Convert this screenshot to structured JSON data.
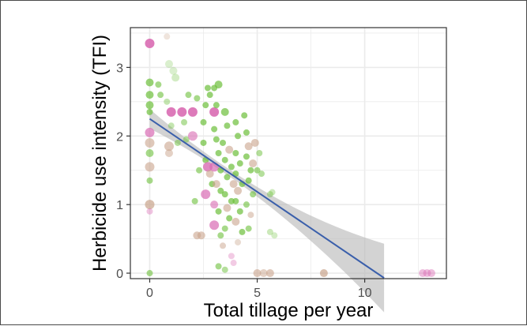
{
  "chart_data": {
    "type": "scatter",
    "title": "",
    "xlabel": "Total tillage per year",
    "ylabel": "Herbicide use intensity (TFI)",
    "xlim": [
      -0.9,
      13.8
    ],
    "ylim": [
      -0.08,
      3.58
    ],
    "x_ticks": [
      0,
      5,
      10
    ],
    "y_ticks": [
      0,
      1,
      2,
      3
    ],
    "grid": true,
    "legend": "none",
    "colors": {
      "panel_border": "#333333",
      "grid": "#ebebeb",
      "fit_line": "#3a5fab",
      "confidence_band": "#b5b5b5",
      "green": "#6cbf3a",
      "pink": "#d96bb3",
      "tan": "#c9a48c"
    },
    "trend": {
      "x": [
        0,
        10.9
      ],
      "y": [
        2.25,
        -0.07
      ]
    },
    "points": [
      {
        "x": 0,
        "y": 3.35,
        "c": "pink",
        "s": 6,
        "o": 0.9
      },
      {
        "x": 0,
        "y": 2.78,
        "c": "green",
        "s": 5,
        "o": 0.7
      },
      {
        "x": 0,
        "y": 2.6,
        "c": "green",
        "s": 5,
        "o": 0.7
      },
      {
        "x": 0,
        "y": 2.45,
        "c": "green",
        "s": 5,
        "o": 0.7
      },
      {
        "x": 0,
        "y": 2.35,
        "c": "green",
        "s": 4,
        "o": 0.7
      },
      {
        "x": 0,
        "y": 2.05,
        "c": "pink",
        "s": 6,
        "o": 0.7
      },
      {
        "x": 0,
        "y": 1.9,
        "c": "tan",
        "s": 6,
        "o": 0.6
      },
      {
        "x": 0,
        "y": 1.75,
        "c": "green",
        "s": 5,
        "o": 0.6
      },
      {
        "x": 0,
        "y": 1.55,
        "c": "tan",
        "s": 6,
        "o": 0.6
      },
      {
        "x": 0,
        "y": 1.35,
        "c": "green",
        "s": 4,
        "o": 0.6
      },
      {
        "x": 0,
        "y": 1.0,
        "c": "tan",
        "s": 6,
        "o": 0.7
      },
      {
        "x": 0,
        "y": 0.9,
        "c": "pink",
        "s": 4,
        "o": 0.4
      },
      {
        "x": 0,
        "y": 0,
        "c": "green",
        "s": 4,
        "o": 0.6
      },
      {
        "x": 0.4,
        "y": 2.75,
        "c": "green",
        "s": 4,
        "o": 0.6
      },
      {
        "x": 0.5,
        "y": 2.6,
        "c": "green",
        "s": 4,
        "o": 0.6
      },
      {
        "x": 0.8,
        "y": 3.45,
        "c": "tan",
        "s": 4,
        "o": 0.3
      },
      {
        "x": 0.9,
        "y": 3.05,
        "c": "green",
        "s": 5,
        "o": 0.25
      },
      {
        "x": 1.0,
        "y": 2.35,
        "c": "pink",
        "s": 6,
        "o": 0.9
      },
      {
        "x": 1.1,
        "y": 2.95,
        "c": "green",
        "s": 5,
        "o": 0.25
      },
      {
        "x": 1.2,
        "y": 2.85,
        "c": "green",
        "s": 5,
        "o": 0.3
      },
      {
        "x": 0.8,
        "y": 2.5,
        "c": "green",
        "s": 4,
        "o": 0.4
      },
      {
        "x": 0.9,
        "y": 1.85,
        "c": "tan",
        "s": 6,
        "o": 0.6
      },
      {
        "x": 0.9,
        "y": 1.75,
        "c": "tan",
        "s": 5,
        "o": 0.5
      },
      {
        "x": 1.0,
        "y": 2.15,
        "c": "green",
        "s": 4,
        "o": 0.4
      },
      {
        "x": 1.5,
        "y": 2.35,
        "c": "pink",
        "s": 6,
        "o": 0.9
      },
      {
        "x": 1.6,
        "y": 2.2,
        "c": "green",
        "s": 4,
        "o": 0.5
      },
      {
        "x": 1.7,
        "y": 1.95,
        "c": "green",
        "s": 4,
        "o": 0.5
      },
      {
        "x": 1.3,
        "y": 1.9,
        "c": "green",
        "s": 4,
        "o": 0.5
      },
      {
        "x": 2.0,
        "y": 2.35,
        "c": "pink",
        "s": 6,
        "o": 0.9
      },
      {
        "x": 2.0,
        "y": 2.0,
        "c": "pink",
        "s": 6,
        "o": 0.6
      },
      {
        "x": 1.8,
        "y": 2.6,
        "c": "green",
        "s": 4,
        "o": 0.6
      },
      {
        "x": 2.2,
        "y": 2.55,
        "c": "green",
        "s": 4,
        "o": 0.6
      },
      {
        "x": 2.3,
        "y": 1.5,
        "c": "green",
        "s": 4,
        "o": 0.6
      },
      {
        "x": 2.1,
        "y": 1.05,
        "c": "green",
        "s": 4,
        "o": 0.6
      },
      {
        "x": 2.2,
        "y": 0.55,
        "c": "tan",
        "s": 5,
        "o": 0.6
      },
      {
        "x": 2.4,
        "y": 0.55,
        "c": "tan",
        "s": 5,
        "o": 0.6
      },
      {
        "x": 2.7,
        "y": 2.7,
        "c": "green",
        "s": 4,
        "o": 0.7
      },
      {
        "x": 2.8,
        "y": 2.6,
        "c": "green",
        "s": 4,
        "o": 0.7
      },
      {
        "x": 2.6,
        "y": 2.45,
        "c": "green",
        "s": 4,
        "o": 0.7
      },
      {
        "x": 2.5,
        "y": 2.2,
        "c": "green",
        "s": 4,
        "o": 0.7
      },
      {
        "x": 2.5,
        "y": 1.9,
        "c": "green",
        "s": 4,
        "o": 0.7
      },
      {
        "x": 2.6,
        "y": 1.65,
        "c": "green",
        "s": 4,
        "o": 0.7
      },
      {
        "x": 2.7,
        "y": 1.55,
        "c": "pink",
        "s": 6,
        "o": 0.8
      },
      {
        "x": 2.8,
        "y": 1.45,
        "c": "tan",
        "s": 5,
        "o": 0.6
      },
      {
        "x": 2.6,
        "y": 1.15,
        "c": "pink",
        "s": 6,
        "o": 0.7
      },
      {
        "x": 2.9,
        "y": 1.3,
        "c": "green",
        "s": 4,
        "o": 0.7
      },
      {
        "x": 3.0,
        "y": 2.35,
        "c": "pink",
        "s": 6,
        "o": 0.9
      },
      {
        "x": 3.0,
        "y": 2.7,
        "c": "green",
        "s": 4,
        "o": 0.7
      },
      {
        "x": 3.2,
        "y": 2.75,
        "c": "green",
        "s": 5,
        "o": 0.7
      },
      {
        "x": 3.1,
        "y": 2.45,
        "c": "green",
        "s": 4,
        "o": 0.7
      },
      {
        "x": 3.0,
        "y": 2.1,
        "c": "green",
        "s": 4,
        "o": 0.7
      },
      {
        "x": 3.1,
        "y": 1.95,
        "c": "green",
        "s": 4,
        "o": 0.7
      },
      {
        "x": 3.2,
        "y": 1.75,
        "c": "green",
        "s": 4,
        "o": 0.7
      },
      {
        "x": 3.0,
        "y": 1.55,
        "c": "pink",
        "s": 6,
        "o": 0.7
      },
      {
        "x": 3.3,
        "y": 1.5,
        "c": "green",
        "s": 4,
        "o": 0.7
      },
      {
        "x": 3.1,
        "y": 1.3,
        "c": "tan",
        "s": 5,
        "o": 0.6
      },
      {
        "x": 3.3,
        "y": 1.2,
        "c": "green",
        "s": 4,
        "o": 0.7
      },
      {
        "x": 3.0,
        "y": 1.0,
        "c": "pink",
        "s": 5,
        "o": 0.6
      },
      {
        "x": 3.2,
        "y": 0.9,
        "c": "green",
        "s": 4,
        "o": 0.7
      },
      {
        "x": 3.0,
        "y": 0.7,
        "c": "pink",
        "s": 6,
        "o": 0.7
      },
      {
        "x": 3.3,
        "y": 0.55,
        "c": "green",
        "s": 4,
        "o": 0.6
      },
      {
        "x": 3.5,
        "y": 2.35,
        "c": "green",
        "s": 5,
        "o": 0.7
      },
      {
        "x": 3.6,
        "y": 2.15,
        "c": "green",
        "s": 4,
        "o": 0.7
      },
      {
        "x": 3.4,
        "y": 1.9,
        "c": "green",
        "s": 4,
        "o": 0.7
      },
      {
        "x": 3.7,
        "y": 1.8,
        "c": "tan",
        "s": 5,
        "o": 0.6
      },
      {
        "x": 3.5,
        "y": 1.65,
        "c": "green",
        "s": 4,
        "o": 0.7
      },
      {
        "x": 3.8,
        "y": 1.55,
        "c": "green",
        "s": 4,
        "o": 0.7
      },
      {
        "x": 3.6,
        "y": 1.4,
        "c": "green",
        "s": 4,
        "o": 0.7
      },
      {
        "x": 3.9,
        "y": 1.3,
        "c": "tan",
        "s": 5,
        "o": 0.6
      },
      {
        "x": 3.5,
        "y": 1.15,
        "c": "green",
        "s": 4,
        "o": 0.7
      },
      {
        "x": 3.8,
        "y": 1.05,
        "c": "green",
        "s": 4,
        "o": 0.7
      },
      {
        "x": 3.6,
        "y": 0.95,
        "c": "tan",
        "s": 5,
        "o": 0.6
      },
      {
        "x": 3.7,
        "y": 0.8,
        "c": "green",
        "s": 4,
        "o": 0.7
      },
      {
        "x": 3.5,
        "y": 0.65,
        "c": "green",
        "s": 4,
        "o": 0.6
      },
      {
        "x": 3.4,
        "y": 0.4,
        "c": "tan",
        "s": 4,
        "o": 0.5
      },
      {
        "x": 3.2,
        "y": 0.1,
        "c": "green",
        "s": 4,
        "o": 0.6
      },
      {
        "x": 3.5,
        "y": 0.05,
        "c": "green",
        "s": 4,
        "o": 0.5
      },
      {
        "x": 3.8,
        "y": 0.25,
        "c": "pink",
        "s": 4,
        "o": 0.35
      },
      {
        "x": 3.9,
        "y": 0.15,
        "c": "pink",
        "s": 4,
        "o": 0.35
      },
      {
        "x": 4.0,
        "y": 2.2,
        "c": "green",
        "s": 4,
        "o": 0.7
      },
      {
        "x": 4.1,
        "y": 2.0,
        "c": "green",
        "s": 4,
        "o": 0.7
      },
      {
        "x": 4.0,
        "y": 1.75,
        "c": "green",
        "s": 4,
        "o": 0.7
      },
      {
        "x": 4.2,
        "y": 1.6,
        "c": "green",
        "s": 4,
        "o": 0.7
      },
      {
        "x": 4.0,
        "y": 1.45,
        "c": "green",
        "s": 4,
        "o": 0.7
      },
      {
        "x": 4.3,
        "y": 1.3,
        "c": "green",
        "s": 4,
        "o": 0.7
      },
      {
        "x": 4.1,
        "y": 1.2,
        "c": "tan",
        "s": 5,
        "o": 0.6
      },
      {
        "x": 4.0,
        "y": 1.05,
        "c": "green",
        "s": 4,
        "o": 0.7
      },
      {
        "x": 4.2,
        "y": 0.9,
        "c": "green",
        "s": 4,
        "o": 0.7
      },
      {
        "x": 4.0,
        "y": 0.75,
        "c": "tan",
        "s": 5,
        "o": 0.6
      },
      {
        "x": 4.3,
        "y": 0.6,
        "c": "green",
        "s": 4,
        "o": 0.7
      },
      {
        "x": 4.1,
        "y": 0.45,
        "c": "tan",
        "s": 4,
        "o": 0.4
      },
      {
        "x": 4.4,
        "y": 2.3,
        "c": "green",
        "s": 4,
        "o": 0.7
      },
      {
        "x": 4.5,
        "y": 2.05,
        "c": "green",
        "s": 4,
        "o": 0.7
      },
      {
        "x": 4.6,
        "y": 1.85,
        "c": "tan",
        "s": 5,
        "o": 0.6
      },
      {
        "x": 4.5,
        "y": 1.7,
        "c": "green",
        "s": 4,
        "o": 0.7
      },
      {
        "x": 4.7,
        "y": 1.5,
        "c": "green",
        "s": 4,
        "o": 0.7
      },
      {
        "x": 4.6,
        "y": 1.35,
        "c": "green",
        "s": 4,
        "o": 0.7
      },
      {
        "x": 4.8,
        "y": 1.15,
        "c": "green",
        "s": 4,
        "o": 0.6
      },
      {
        "x": 4.5,
        "y": 1.0,
        "c": "green",
        "s": 4,
        "o": 0.6
      },
      {
        "x": 4.7,
        "y": 0.85,
        "c": "tan",
        "s": 4,
        "o": 0.5
      },
      {
        "x": 4.6,
        "y": 0.65,
        "c": "green",
        "s": 4,
        "o": 0.6
      },
      {
        "x": 4.8,
        "y": 1.6,
        "c": "tan",
        "s": 5,
        "o": 0.6
      },
      {
        "x": 4.9,
        "y": 1.9,
        "c": "tan",
        "s": 5,
        "o": 0.6
      },
      {
        "x": 5.0,
        "y": 1.5,
        "c": "green",
        "s": 4,
        "o": 0.6
      },
      {
        "x": 5.1,
        "y": 1.75,
        "c": "green",
        "s": 4,
        "o": 0.5
      },
      {
        "x": 5.2,
        "y": 1.45,
        "c": "green",
        "s": 4,
        "o": 0.5
      },
      {
        "x": 5.0,
        "y": 0,
        "c": "tan",
        "s": 5,
        "o": 0.6
      },
      {
        "x": 5.3,
        "y": 0,
        "c": "tan",
        "s": 5,
        "o": 0.5
      },
      {
        "x": 5.6,
        "y": 1.15,
        "c": "green",
        "s": 4,
        "o": 0.4
      },
      {
        "x": 5.7,
        "y": 1.18,
        "c": "green",
        "s": 4,
        "o": 0.35
      },
      {
        "x": 5.6,
        "y": 0.6,
        "c": "green",
        "s": 4,
        "o": 0.35
      },
      {
        "x": 5.8,
        "y": 0.55,
        "c": "green",
        "s": 4,
        "o": 0.3
      },
      {
        "x": 5.6,
        "y": 0,
        "c": "tan",
        "s": 5,
        "o": 0.6
      },
      {
        "x": 8.1,
        "y": 0,
        "c": "tan",
        "s": 5,
        "o": 0.7
      },
      {
        "x": 12.7,
        "y": 0,
        "c": "pink",
        "s": 5,
        "o": 0.45
      },
      {
        "x": 12.9,
        "y": 0,
        "c": "pink",
        "s": 5,
        "o": 0.45
      },
      {
        "x": 13.1,
        "y": 0,
        "c": "pink",
        "s": 5,
        "o": 0.45
      }
    ]
  }
}
